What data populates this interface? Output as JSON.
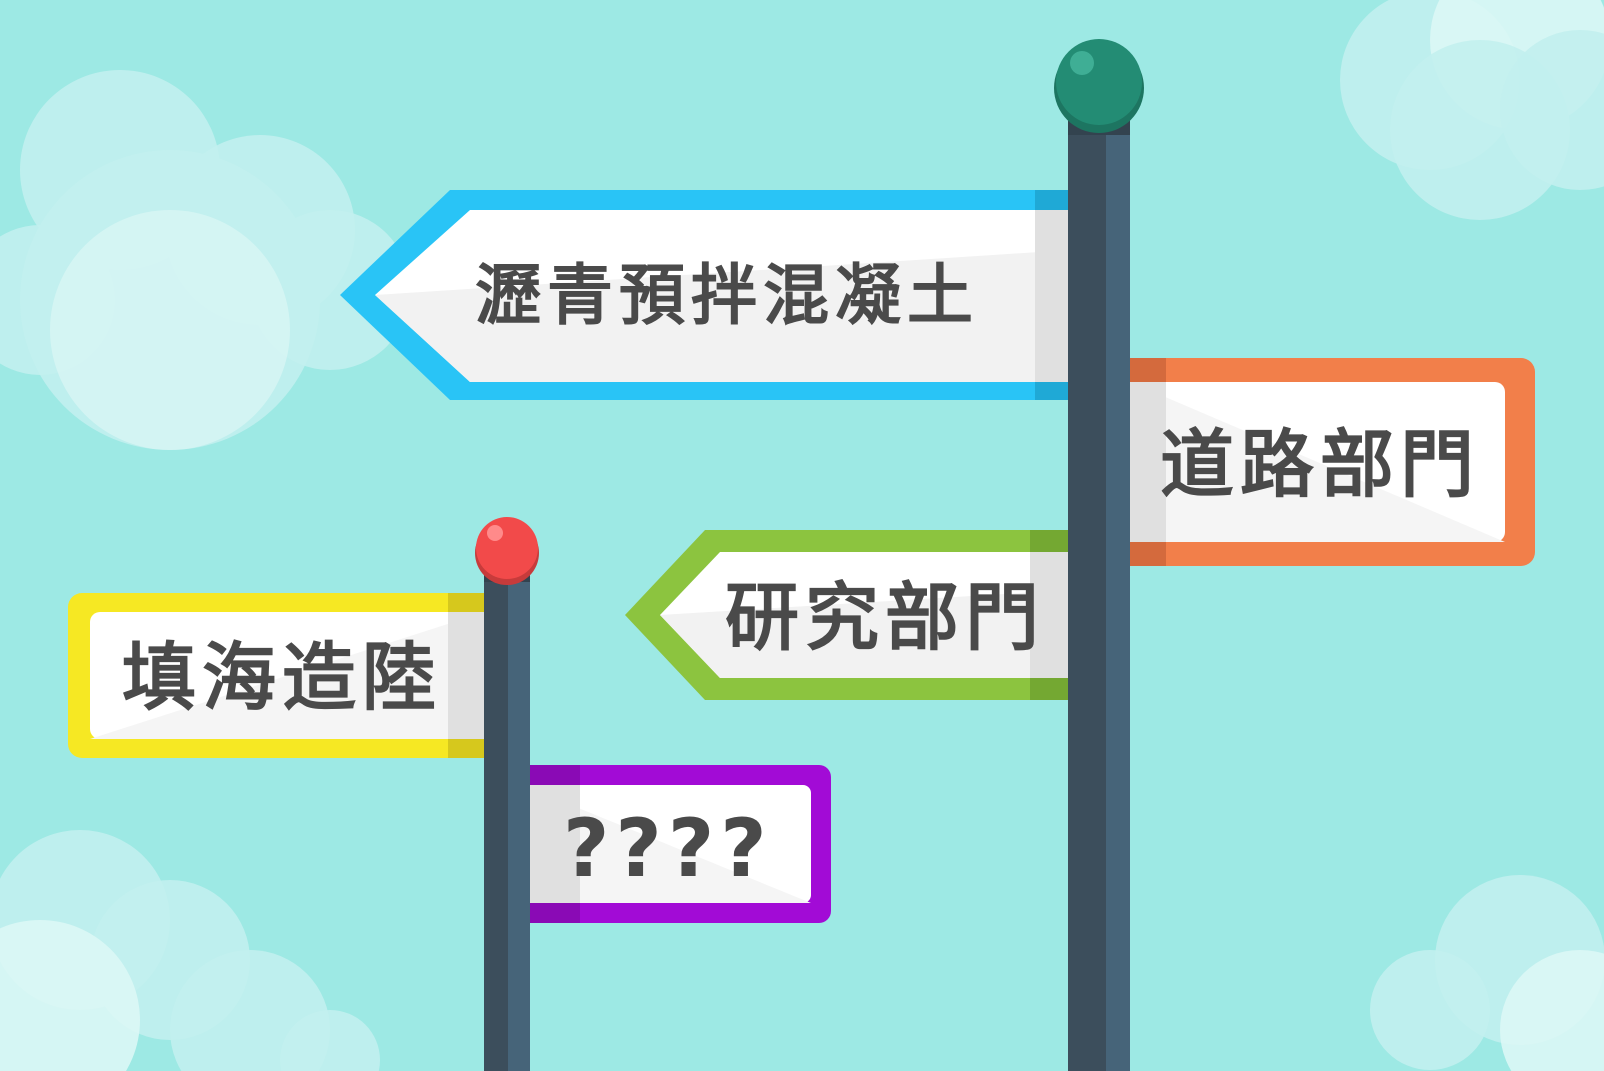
{
  "signs": {
    "asphalt": {
      "label": "瀝青預拌混凝土",
      "color": "#29c4f6"
    },
    "road": {
      "label": "道路部門",
      "color": "#f27f4a"
    },
    "research": {
      "label": "研究部門",
      "color": "#8cc43f"
    },
    "reclamation": {
      "label": "填海造陸",
      "color": "#f6e823"
    },
    "unknown": {
      "label": "????",
      "color": "#a20bd6"
    }
  },
  "colors": {
    "sky": "#9de9e4",
    "pole": "#3c4e5c",
    "pole_highlight": "#466479",
    "big_pole_cap": "#238c74",
    "small_pole_cap": "#f24a4a"
  }
}
